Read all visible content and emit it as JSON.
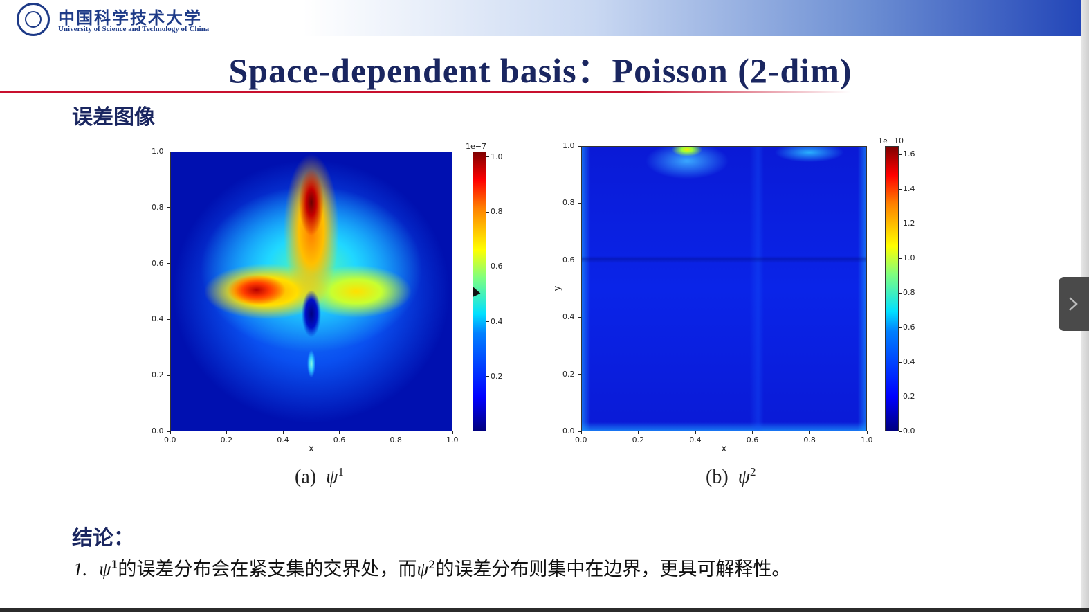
{
  "header": {
    "logo_cn": "中国科学技术大学",
    "logo_en": "University of Science and Technology of China"
  },
  "slide": {
    "title": "Space-dependent basis：Poisson (2-dim)",
    "section_heading": "误差图像",
    "conclusion_heading": "结论：",
    "conclusion": {
      "number": "1.",
      "psi": "ψ",
      "sup1": "1",
      "text1": "的误差分布会在紧支集的交界处，而",
      "sup2": "2",
      "text2": "的误差分布则集中在边界，更具可解释性。"
    }
  },
  "figures": [
    {
      "caption_prefix": "(a)",
      "caption_symbol": "ψ",
      "caption_sup": "1",
      "xlabel": "x",
      "ylabel": "",
      "xticks": [
        "0.0",
        "0.2",
        "0.4",
        "0.6",
        "0.8",
        "1.0"
      ],
      "yticks": [
        "0.0",
        "0.2",
        "0.4",
        "0.6",
        "0.8",
        "1.0"
      ],
      "colorbar_scale": "1e−7",
      "colorbar_ticks": [
        "0.2",
        "0.4",
        "0.6",
        "0.8",
        "1.0"
      ]
    },
    {
      "caption_prefix": "(b)",
      "caption_symbol": "ψ",
      "caption_sup": "2",
      "xlabel": "x",
      "ylabel": "y",
      "xticks": [
        "0.0",
        "0.2",
        "0.4",
        "0.6",
        "0.8",
        "1.0"
      ],
      "yticks": [
        "0.0",
        "0.2",
        "0.4",
        "0.6",
        "0.8",
        "1.0"
      ],
      "colorbar_scale": "1e−10",
      "colorbar_ticks": [
        "0.0",
        "0.2",
        "0.4",
        "0.6",
        "0.8",
        "1.0",
        "1.2",
        "1.4",
        "1.6"
      ]
    }
  ],
  "chart_data": [
    {
      "type": "heatmap",
      "title": "",
      "xlabel": "x",
      "ylabel": "",
      "xlim": [
        0,
        1
      ],
      "ylim": [
        0,
        1
      ],
      "colormap": "jet",
      "colorbar_range": [
        0,
        1.02e-07
      ],
      "hotspots": [
        {
          "x": 0.5,
          "y": 0.84,
          "value": 1e-07
        },
        {
          "x": 0.3,
          "y": 0.5,
          "value": 9.5e-08
        },
        {
          "x": 0.5,
          "y": 0.45,
          "value": 5e-09
        }
      ]
    },
    {
      "type": "heatmap",
      "title": "",
      "xlabel": "x",
      "ylabel": "y",
      "xlim": [
        0,
        1
      ],
      "ylim": [
        0,
        1
      ],
      "colormap": "jet",
      "colorbar_range": [
        0,
        1.65e-10
      ],
      "hotspots": [
        {
          "x": 0.37,
          "y": 0.99,
          "value": 9e-11
        },
        {
          "x": 0.5,
          "y": 0.5,
          "value": 1.5e-11
        }
      ]
    }
  ],
  "nav": {
    "next_icon": "chevron-right-icon"
  }
}
